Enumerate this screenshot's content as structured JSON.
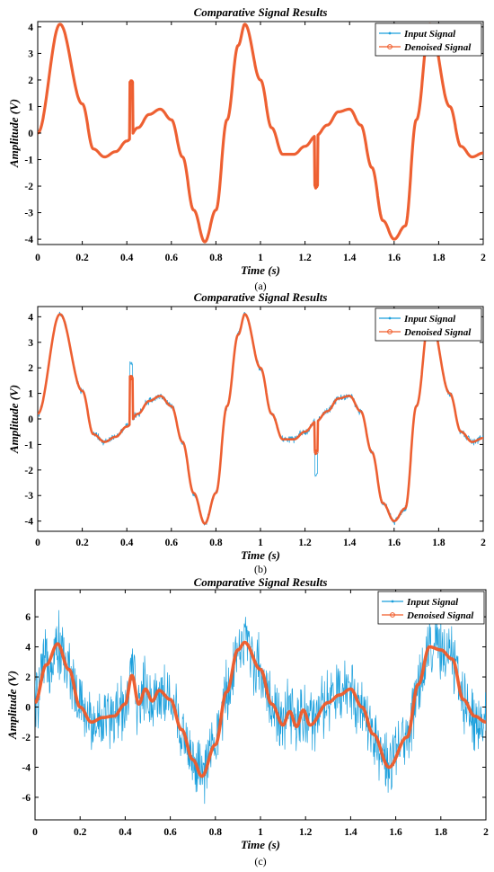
{
  "colors": {
    "input": "#1a9fdc",
    "denoised": "#f05a28",
    "axes": "#000000",
    "background": "#ffffff"
  },
  "chart_data": [
    {
      "type": "line",
      "label": "(a)",
      "title": "Comparative Signal Results",
      "xlabel": "Time (s)",
      "ylabel": "Amplitude (V)",
      "xlim": [
        0,
        2
      ],
      "ylim": [
        -4.2,
        4.2
      ],
      "xticks": [
        0,
        0.2,
        0.4,
        0.6,
        0.8,
        1,
        1.2,
        1.4,
        1.6,
        1.8,
        2
      ],
      "xtick_labels": [
        "0",
        "0.2",
        "0.4",
        "0.6",
        "0.8",
        "1",
        "1.2",
        "1.4",
        "1.6",
        "1.8",
        "2"
      ],
      "yticks": [
        -4,
        -3,
        -2,
        -1,
        0,
        1,
        2,
        3,
        4
      ],
      "ytick_labels": [
        "-4",
        "-3",
        "-2",
        "-1",
        "0",
        "1",
        "2",
        "3",
        "4"
      ],
      "grid": false,
      "legend_position": "top-right",
      "noise_level": 0,
      "series": [
        {
          "name": "Input Signal",
          "color": "#1a9fdc",
          "marker": "point",
          "glitches": [
            [
              0.42,
              1.9
            ],
            [
              1.25,
              -2.0
            ]
          ]
        },
        {
          "name": "Denoised Signal",
          "color": "#f05a28",
          "marker": "circle",
          "glitches": [
            [
              0.42,
              1.9
            ],
            [
              1.25,
              -2.0
            ]
          ]
        }
      ],
      "x": [
        0.0,
        0.1,
        0.2,
        0.25,
        0.3,
        0.35,
        0.4,
        0.45,
        0.5,
        0.55,
        0.6,
        0.65,
        0.7,
        0.75,
        0.8,
        0.85,
        0.9,
        0.93,
        1.0,
        1.05,
        1.1,
        1.15,
        1.2,
        1.25,
        1.3,
        1.35,
        1.4,
        1.45,
        1.5,
        1.55,
        1.6,
        1.65,
        1.7,
        1.76,
        1.85,
        1.9,
        1.95,
        2.0
      ],
      "y": [
        0.0,
        4.1,
        1.1,
        -0.6,
        -0.9,
        -0.7,
        -0.3,
        0.2,
        0.7,
        0.9,
        0.5,
        -0.9,
        -2.9,
        -4.1,
        -2.9,
        0.5,
        3.3,
        4.1,
        2.0,
        0.2,
        -0.8,
        -0.8,
        -0.5,
        -0.1,
        0.3,
        0.8,
        0.9,
        0.3,
        -1.3,
        -3.3,
        -4.0,
        -3.5,
        0.5,
        4.1,
        1.0,
        -0.5,
        -0.9,
        -0.75
      ]
    },
    {
      "type": "line",
      "label": "(b)",
      "title": "Comparative Signal Results",
      "xlabel": "Time (s)",
      "ylabel": "Amplitude (V)",
      "xlim": [
        0,
        2
      ],
      "ylim": [
        -4.4,
        4.4
      ],
      "xticks": [
        0,
        0.2,
        0.4,
        0.6,
        0.8,
        1,
        1.2,
        1.4,
        1.6,
        1.8,
        2
      ],
      "xtick_labels": [
        "0",
        "0.2",
        "0.4",
        "0.6",
        "0.8",
        "1",
        "1.2",
        "1.4",
        "1.6",
        "1.8",
        "2"
      ],
      "yticks": [
        -4,
        -3,
        -2,
        -1,
        0,
        1,
        2,
        3,
        4
      ],
      "ytick_labels": [
        "-4",
        "-3",
        "-2",
        "-1",
        "0",
        "1",
        "2",
        "3",
        "4"
      ],
      "grid": false,
      "legend_position": "top-right",
      "noise_level": 0.12,
      "series": [
        {
          "name": "Input Signal",
          "color": "#1a9fdc",
          "marker": "point",
          "glitches": [
            [
              0.42,
              2.2
            ],
            [
              1.25,
              -2.2
            ]
          ]
        },
        {
          "name": "Denoised Signal",
          "color": "#f05a28",
          "marker": "circle",
          "glitches": [
            [
              0.42,
              1.6
            ],
            [
              1.25,
              -1.3
            ]
          ]
        }
      ],
      "x": [
        0.0,
        0.1,
        0.2,
        0.25,
        0.3,
        0.35,
        0.4,
        0.45,
        0.5,
        0.55,
        0.6,
        0.65,
        0.7,
        0.75,
        0.8,
        0.85,
        0.9,
        0.93,
        1.0,
        1.05,
        1.1,
        1.15,
        1.2,
        1.25,
        1.3,
        1.35,
        1.4,
        1.45,
        1.5,
        1.55,
        1.6,
        1.65,
        1.7,
        1.76,
        1.85,
        1.9,
        1.95,
        2.0
      ],
      "y": [
        0.2,
        4.1,
        1.1,
        -0.6,
        -0.9,
        -0.7,
        -0.3,
        0.2,
        0.7,
        0.9,
        0.5,
        -0.9,
        -2.9,
        -4.1,
        -2.9,
        0.5,
        3.3,
        4.1,
        2.0,
        0.2,
        -0.8,
        -0.8,
        -0.5,
        -0.1,
        0.3,
        0.8,
        0.9,
        0.3,
        -1.3,
        -3.3,
        -4.0,
        -3.5,
        0.5,
        4.1,
        1.0,
        -0.5,
        -0.9,
        -0.75
      ]
    },
    {
      "type": "line",
      "label": "(c)",
      "title": "Comparative Signal Results",
      "xlabel": "Time (s)",
      "ylabel": "Amplitude (V)",
      "xlim": [
        0,
        2
      ],
      "ylim": [
        -7.5,
        7.8
      ],
      "xticks": [
        0,
        0.2,
        0.4,
        0.6,
        0.8,
        1,
        1.2,
        1.4,
        1.6,
        1.8,
        2
      ],
      "xtick_labels": [
        "0",
        "0.2",
        "0.4",
        "0.6",
        "0.8",
        "1",
        "1.2",
        "1.4",
        "1.6",
        "1.8",
        "2"
      ],
      "yticks": [
        -6,
        -4,
        -2,
        0,
        2,
        4,
        6
      ],
      "ytick_labels": [
        "-6",
        "-4",
        "-2",
        "0",
        "2",
        "4",
        "6"
      ],
      "grid": false,
      "legend_position": "top-right",
      "noise_level": 1.8,
      "series": [
        {
          "name": "Input Signal",
          "color": "#1a9fdc",
          "marker": "point",
          "glitches": []
        },
        {
          "name": "Denoised Signal",
          "color": "#f05a28",
          "marker": "circle",
          "glitches": []
        }
      ],
      "x": [
        0.0,
        0.05,
        0.1,
        0.15,
        0.2,
        0.25,
        0.3,
        0.35,
        0.4,
        0.43,
        0.46,
        0.49,
        0.52,
        0.55,
        0.6,
        0.65,
        0.7,
        0.74,
        0.8,
        0.85,
        0.9,
        0.93,
        1.0,
        1.05,
        1.1,
        1.13,
        1.16,
        1.19,
        1.22,
        1.3,
        1.35,
        1.4,
        1.45,
        1.5,
        1.57,
        1.65,
        1.7,
        1.75,
        1.8,
        1.85,
        1.9,
        1.95,
        2.0
      ],
      "y": [
        0.3,
        2.8,
        4.2,
        2.5,
        0.0,
        -1.0,
        -0.7,
        -0.6,
        0.2,
        2.1,
        0.2,
        1.2,
        0.4,
        1.1,
        0.5,
        -1.5,
        -3.5,
        -4.6,
        -2.5,
        1.0,
        3.8,
        4.3,
        2.5,
        0.2,
        -1.2,
        -0.3,
        -1.3,
        -0.2,
        -1.2,
        0.3,
        0.8,
        1.2,
        0.0,
        -1.8,
        -4.0,
        -2.0,
        1.5,
        4.0,
        3.8,
        3.2,
        0.5,
        -0.6,
        -1.0
      ]
    }
  ]
}
